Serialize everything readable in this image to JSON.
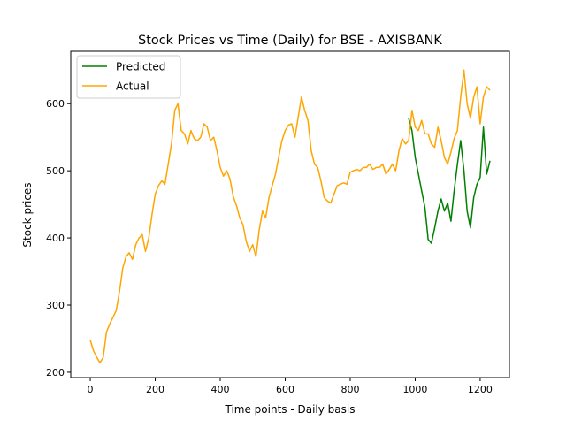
{
  "chart_data": {
    "type": "line",
    "title": "Stock Prices vs Time (Daily) for BSE - AXISBANK",
    "xlabel": "Time points - Daily basis",
    "ylabel": "Stock prices",
    "xlim": [
      -60,
      1290
    ],
    "ylim": [
      192,
      678
    ],
    "x_ticks": [
      0,
      200,
      400,
      600,
      800,
      1000,
      1200
    ],
    "y_ticks": [
      200,
      300,
      400,
      500,
      600
    ],
    "grid": false,
    "legend_position": "top-left",
    "series": [
      {
        "name": "Predicted",
        "color": "#008000",
        "x": [
          980,
          990,
          1000,
          1010,
          1020,
          1030,
          1040,
          1050,
          1060,
          1070,
          1080,
          1090,
          1100,
          1110,
          1120,
          1130,
          1140,
          1150,
          1160,
          1170,
          1180,
          1190,
          1200,
          1210,
          1220,
          1230
        ],
        "y": [
          578,
          560,
          520,
          495,
          470,
          445,
          398,
          392,
          415,
          440,
          458,
          440,
          452,
          425,
          470,
          510,
          545,
          500,
          440,
          415,
          460,
          480,
          490,
          565,
          495,
          515
        ]
      },
      {
        "name": "Actual",
        "color": "#ffa500",
        "x": [
          0,
          10,
          20,
          30,
          40,
          50,
          60,
          70,
          80,
          90,
          100,
          110,
          120,
          130,
          140,
          150,
          160,
          170,
          180,
          190,
          200,
          210,
          220,
          230,
          240,
          250,
          260,
          270,
          280,
          290,
          300,
          310,
          320,
          330,
          340,
          350,
          360,
          370,
          380,
          390,
          400,
          410,
          420,
          430,
          440,
          450,
          460,
          470,
          480,
          490,
          500,
          510,
          520,
          530,
          540,
          550,
          560,
          570,
          580,
          590,
          600,
          610,
          620,
          630,
          640,
          650,
          660,
          670,
          680,
          690,
          700,
          710,
          720,
          730,
          740,
          750,
          760,
          770,
          780,
          790,
          800,
          810,
          820,
          830,
          840,
          850,
          860,
          870,
          880,
          890,
          900,
          910,
          920,
          930,
          940,
          950,
          960,
          970,
          980,
          990,
          1000,
          1010,
          1020,
          1030,
          1040,
          1050,
          1060,
          1070,
          1080,
          1090,
          1100,
          1110,
          1120,
          1130,
          1140,
          1150,
          1160,
          1170,
          1180,
          1190,
          1200,
          1210,
          1220,
          1230
        ],
        "y": [
          248,
          232,
          222,
          214,
          222,
          260,
          272,
          282,
          292,
          320,
          355,
          372,
          378,
          368,
          390,
          400,
          405,
          380,
          400,
          435,
          465,
          478,
          485,
          480,
          510,
          540,
          590,
          600,
          560,
          555,
          540,
          560,
          548,
          545,
          550,
          570,
          565,
          545,
          550,
          530,
          505,
          492,
          500,
          488,
          462,
          448,
          430,
          420,
          395,
          380,
          390,
          372,
          412,
          440,
          430,
          460,
          478,
          495,
          520,
          545,
          560,
          568,
          570,
          550,
          580,
          610,
          590,
          575,
          530,
          510,
          505,
          485,
          460,
          455,
          452,
          465,
          478,
          480,
          482,
          480,
          498,
          500,
          502,
          500,
          505,
          505,
          510,
          502,
          505,
          505,
          510,
          495,
          502,
          510,
          500,
          530,
          548,
          540,
          545,
          590,
          565,
          560,
          575,
          555,
          555,
          540,
          535,
          565,
          545,
          520,
          510,
          528,
          548,
          560,
          610,
          650,
          600,
          578,
          610,
          625,
          570,
          610,
          625,
          620
        ]
      }
    ]
  }
}
